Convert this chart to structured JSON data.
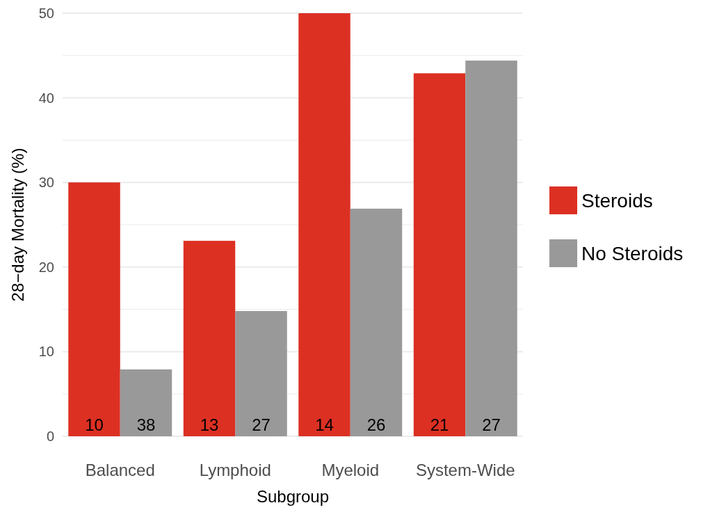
{
  "chart_data": {
    "type": "bar",
    "xlabel": "Subgroup",
    "ylabel": "28−day Mortality (%)",
    "categories": [
      "Balanced",
      "Lymphoid",
      "Myeloid",
      "System-Wide"
    ],
    "series": [
      {
        "name": "Steroids",
        "color": "#dc3023",
        "values": [
          30,
          23.1,
          50,
          42.9
        ]
      },
      {
        "name": "No Steroids",
        "color": "#999999",
        "values": [
          7.9,
          14.8,
          26.9,
          44.4
        ]
      }
    ],
    "annotations": [
      {
        "text": "10",
        "x": "Balanced",
        "y": 0
      },
      {
        "text": "38",
        "x": "Balanced",
        "y": 0
      },
      {
        "text": "13",
        "x": "Lymphoid",
        "y": 0
      },
      {
        "text": "27",
        "x": "Lymphoid",
        "y": 0
      },
      {
        "text": "14",
        "x": "Myeloid",
        "y": 0
      },
      {
        "text": "26",
        "x": "Myeloid",
        "y": 0
      },
      {
        "text": "21",
        "x": "System-Wide",
        "y": 0
      },
      {
        "text": "27",
        "x": "System-Wide",
        "y": 0
      }
    ],
    "ylim": [
      0,
      50
    ],
    "yticks": [
      0,
      {
        "value": 5,
        "label": null
      },
      10,
      {
        "value": 15,
        "label": null
      },
      20,
      {
        "value": 25,
        "label": null
      },
      30,
      {
        "value": 35,
        "label": null
      },
      40,
      {
        "value": 45,
        "label": null
      },
      50
    ],
    "grid": "y",
    "legend": "right"
  }
}
